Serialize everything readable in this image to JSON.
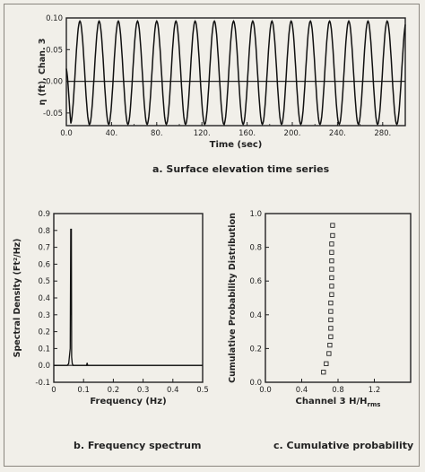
{
  "chart_data": [
    {
      "type": "line",
      "id": "time-series",
      "ylabel": "η (ft), Chan. 3",
      "xlabel": "Time (sec)",
      "x_ticks": [
        "0.0",
        "40.",
        "80.",
        "120.",
        "160.",
        "200.",
        "240.",
        "280."
      ],
      "y_ticks": [
        "-0.05",
        "0.00",
        "0.05",
        "0.10"
      ],
      "xlim": [
        0,
        300
      ],
      "ylim": [
        -0.07,
        0.1
      ],
      "series": [
        {
          "wave": {
            "period_sec": 17,
            "crest": 0.095,
            "trough": -0.068,
            "start_crest_time": 12,
            "start_value": 0.02
          }
        }
      ],
      "reference_line_y": 0.0,
      "caption": "a. Surface elevation time series"
    },
    {
      "type": "line",
      "id": "frequency-spectrum",
      "ylabel": "Spectral Density (Ft²/Hz)",
      "xlabel": "Frequency (Hz)",
      "x_ticks": [
        "0",
        "0.1",
        "0.2",
        "0.3",
        "0.4",
        "0.5"
      ],
      "y_ticks": [
        "-0.1",
        "0.0",
        "0.1",
        "0.2",
        "0.3",
        "0.4",
        "0.5",
        "0.6",
        "0.7",
        "0.8",
        "0.9"
      ],
      "xlim": [
        0,
        0.5
      ],
      "ylim": [
        -0.1,
        0.9
      ],
      "series": [
        {
          "x": [
            0.0,
            0.045,
            0.05,
            0.055,
            0.057,
            0.058,
            0.059,
            0.06,
            0.062,
            0.065,
            0.11,
            0.112,
            0.114,
            0.2,
            0.5
          ],
          "y": [
            0.0,
            0.0,
            0.01,
            0.1,
            0.81,
            0.3,
            0.81,
            0.05,
            0.01,
            0.0,
            0.0,
            0.015,
            0.0,
            0.0,
            0.0
          ]
        }
      ],
      "reference_line_y": 0.0,
      "caption": "b. Frequency spectrum"
    },
    {
      "type": "scatter",
      "id": "cumulative-probability",
      "ylabel": "Cumulative Probability Distribution",
      "xlabel": "Channel 3  H/H",
      "xlabel_subscript": "rms",
      "x_ticks": [
        "0.0",
        "0.4",
        "0.8",
        "1.2"
      ],
      "y_ticks": [
        "0.0",
        "0.2",
        "0.4",
        "0.6",
        "0.8",
        "1.0"
      ],
      "xlim": [
        0,
        1.6
      ],
      "ylim": [
        0,
        1.0
      ],
      "series": [
        {
          "marker": "open-square",
          "points": [
            [
              0.64,
              0.06
            ],
            [
              0.67,
              0.11
            ],
            [
              0.7,
              0.17
            ],
            [
              0.71,
              0.22
            ],
            [
              0.72,
              0.27
            ],
            [
              0.72,
              0.32
            ],
            [
              0.72,
              0.37
            ],
            [
              0.72,
              0.42
            ],
            [
              0.72,
              0.47
            ],
            [
              0.73,
              0.52
            ],
            [
              0.73,
              0.57
            ],
            [
              0.73,
              0.62
            ],
            [
              0.73,
              0.67
            ],
            [
              0.73,
              0.72
            ],
            [
              0.73,
              0.77
            ],
            [
              0.73,
              0.82
            ],
            [
              0.74,
              0.87
            ],
            [
              0.74,
              0.93
            ]
          ]
        }
      ],
      "caption": "c. Cumulative probability"
    }
  ]
}
